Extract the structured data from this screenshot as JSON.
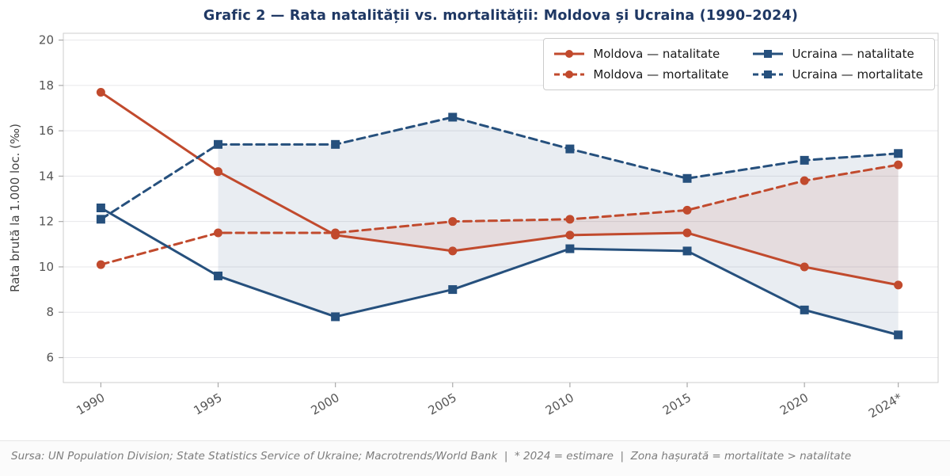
{
  "title": "Grafic 2 — Rata natalității vs. mortalității: Moldova și Ucraina (1990–2024)",
  "footer": "Sursa: UN Population Division; State Statistics Service of Ukraine; Macrotrends/World Bank  |  * 2024 = estimare  |  Zona hașurată = mortalitate > natalitate",
  "colors": {
    "moldova": "#c14a2d",
    "ucraina": "#26507d",
    "title": "#1f3864",
    "tick_label": "#555555",
    "axis_label": "#444444",
    "grid": "#e7e7ea",
    "spine": "#cccccc",
    "tick_mark": "#aaaaaa",
    "footer_text": "#7d7d7d"
  },
  "chart_data": {
    "type": "line",
    "x": [
      1990,
      1995,
      2000,
      2005,
      2010,
      2015,
      2020,
      2024
    ],
    "x_tick_labels": [
      "1990",
      "1995",
      "2000",
      "2005",
      "2010",
      "2015",
      "2020",
      "2024*"
    ],
    "series": [
      {
        "name": "Moldova — natalitate",
        "color_key": "moldova",
        "style": "solid",
        "marker": "circle",
        "values": [
          17.7,
          14.2,
          11.4,
          10.7,
          11.4,
          11.5,
          10.0,
          9.2
        ]
      },
      {
        "name": "Moldova — mortalitate",
        "color_key": "moldova",
        "style": "dashed",
        "marker": "circle",
        "values": [
          10.1,
          11.5,
          11.5,
          12.0,
          12.1,
          12.5,
          13.8,
          14.5
        ]
      },
      {
        "name": "Ucraina — natalitate",
        "color_key": "ucraina",
        "style": "solid",
        "marker": "square",
        "values": [
          12.6,
          9.6,
          7.8,
          9.0,
          10.8,
          10.7,
          8.1,
          7.0
        ]
      },
      {
        "name": "Ucraina — mortalitate",
        "color_key": "ucraina",
        "style": "dashed",
        "marker": "square",
        "values": [
          12.1,
          15.4,
          15.4,
          16.6,
          15.2,
          13.9,
          14.7,
          15.0
        ]
      }
    ],
    "fills": [
      {
        "upper": "Ucraina — mortalitate",
        "lower": "Ucraina — natalitate",
        "from_x": 1995,
        "to_x": 2024,
        "color_key": "ucraina",
        "opacity": 0.1,
        "note": "zona hașurată = mortalitate > natalitate"
      },
      {
        "upper": "Moldova — mortalitate",
        "lower": "Moldova — natalitate",
        "from_x": 2000,
        "to_x": 2024,
        "color_key": "moldova",
        "opacity": 0.1,
        "note": "zona hașurată = mortalitate > natalitate"
      }
    ],
    "ylabel": "Rata brută la 1.000 loc. (‰)",
    "yticks": [
      6,
      8,
      10,
      12,
      14,
      16,
      18,
      20
    ],
    "ylim": [
      4.9,
      20.3
    ],
    "xlim": [
      1988.4,
      2025.7
    ],
    "grid": true,
    "legend_position": "top-right"
  }
}
